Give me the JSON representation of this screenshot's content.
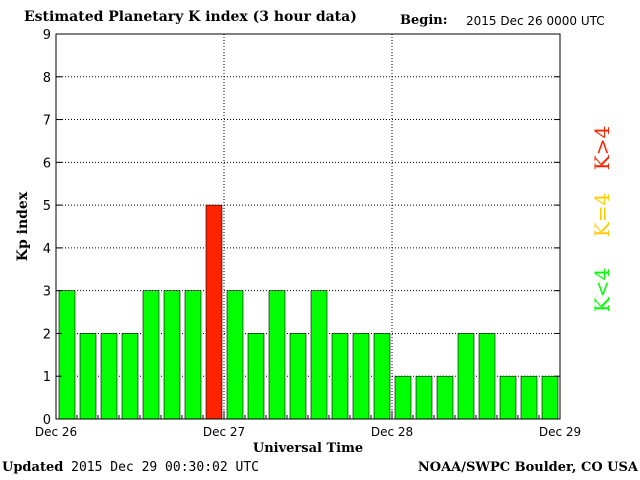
{
  "header": {
    "title": "Estimated Planetary K index (3 hour data)",
    "begin_label": "Begin:",
    "begin_value": "2015 Dec 26 0000 UTC"
  },
  "footer": {
    "updated_label": "Updated",
    "updated_value": "2015 Dec 29 00:30:02 UTC",
    "credit": "NOAA/SWPC Boulder, CO USA"
  },
  "colors": {
    "low": "#00ff00",
    "equal": "#ffcc00",
    "high": "#ff2200",
    "grid": "#000000"
  },
  "legend": [
    {
      "text": "K<4",
      "color": "#00ff00"
    },
    {
      "text": "K=4",
      "color": "#ffcc00"
    },
    {
      "text": "K>4",
      "color": "#ff2200"
    }
  ],
  "chart_data": {
    "type": "bar",
    "xlabel": "Universal Time",
    "ylabel": "Kp index",
    "ylim": [
      0,
      9
    ],
    "yticks": [
      0,
      1,
      2,
      3,
      4,
      5,
      6,
      7,
      8,
      9
    ],
    "xtick_labels": [
      "Dec 26",
      "Dec 27",
      "Dec 28",
      "Dec 29"
    ],
    "grid": true,
    "legend_position": "right, vertical",
    "values": [
      3,
      2,
      2,
      2,
      3,
      3,
      3,
      5,
      3,
      2,
      3,
      2,
      3,
      2,
      2,
      2,
      1,
      1,
      1,
      2,
      2,
      1,
      1,
      1
    ]
  }
}
